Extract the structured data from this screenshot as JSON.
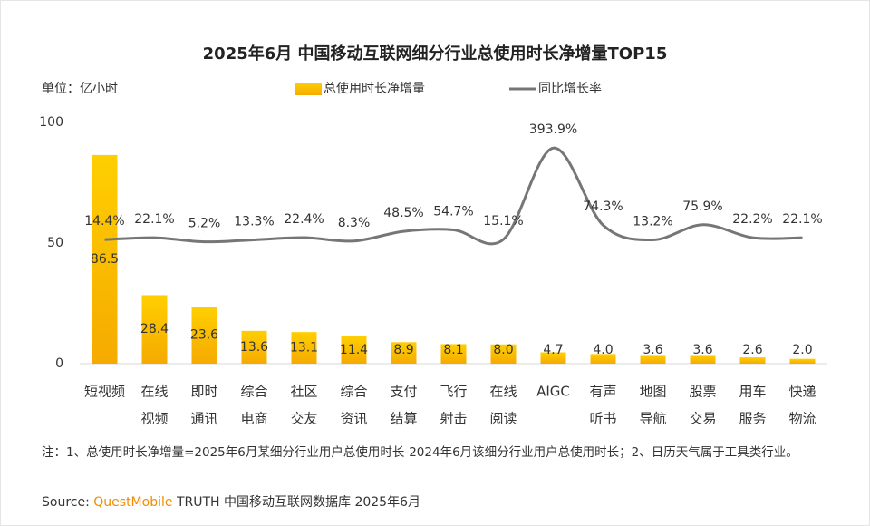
{
  "chart_data": {
    "type": "bar_line",
    "title": "2025年6月 中国移动互联网细分行业总使用时长净增量TOP15",
    "unit_label": "单位：亿小时",
    "categories": [
      [
        "短视频"
      ],
      [
        "在线",
        "视频"
      ],
      [
        "即时",
        "通讯"
      ],
      [
        "综合",
        "电商"
      ],
      [
        "社区",
        "交友"
      ],
      [
        "综合",
        "资讯"
      ],
      [
        "支付",
        "结算"
      ],
      [
        "飞行",
        "射击"
      ],
      [
        "在线",
        "阅读"
      ],
      [
        "AIGC"
      ],
      [
        "有声",
        "听书"
      ],
      [
        "地图",
        "导航"
      ],
      [
        "股票",
        "交易"
      ],
      [
        "用车",
        "服务"
      ],
      [
        "快递",
        "物流"
      ]
    ],
    "series": [
      {
        "name": "总使用时长净增量",
        "type": "bar",
        "color": "#ffc000",
        "values": [
          86.5,
          28.4,
          23.6,
          13.6,
          13.1,
          11.4,
          8.9,
          8.1,
          8.0,
          4.7,
          4.0,
          3.6,
          3.6,
          2.6,
          2.0
        ],
        "value_labels": [
          "86.5",
          "28.4",
          "23.6",
          "13.6",
          "13.1",
          "11.4",
          "8.9",
          "8.1",
          "8.0",
          "4.7",
          "4.0",
          "3.6",
          "3.6",
          "2.6",
          "2.0"
        ]
      },
      {
        "name": "同比增长率",
        "type": "line",
        "axis": "y2",
        "color": "#767676",
        "values": [
          14.4,
          22.1,
          5.2,
          13.3,
          22.4,
          8.3,
          48.5,
          54.7,
          15.1,
          393.9,
          74.3,
          13.2,
          75.9,
          22.2,
          22.1
        ],
        "value_labels": [
          "14.4%",
          "22.1%",
          "5.2%",
          "13.3%",
          "22.4%",
          "8.3%",
          "48.5%",
          "54.7%",
          "15.1%",
          "393.9%",
          "74.3%",
          "13.2%",
          "75.9%",
          "22.2%",
          "22.1%"
        ]
      }
    ],
    "ylim": [
      0,
      100
    ],
    "yticks": [
      0,
      50,
      100
    ],
    "y2lim": [
      -500,
      500
    ],
    "note": "注：1、总使用时长净增量=2025年6月某细分行业用户总使用时长-2024年6月该细分行业用户总使用时长；2、日历天气属于工具类行业。",
    "source_prefix": "Source:",
    "source_brand": "QuestMobile",
    "source_rest": "TRUTH 中国移动互联网数据库 2025年6月"
  }
}
